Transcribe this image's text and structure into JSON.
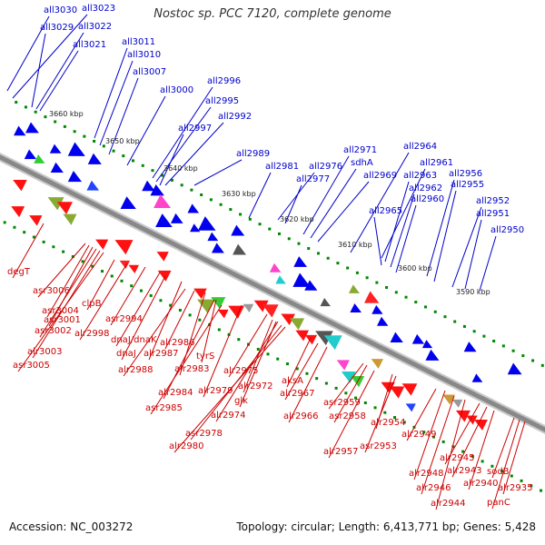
{
  "title": "Nostoc sp. PCC 7120, complete genome",
  "accession": "Accession: NC_003272",
  "summary": "Topology: circular; Length: 6,413,771 bp; Genes: 5,428",
  "colors": {
    "reverse_label": "#0000cc",
    "forward_label": "#cc0000",
    "backbone": "#888888",
    "tick": "#008800"
  },
  "scale_labels": [
    "3660 kbp",
    "3650 kbp",
    "3640 kbp",
    "3630 kbp",
    "3620 kbp",
    "3610 kbp",
    "3600 kbp",
    "3590 kbp"
  ],
  "reverse_strand_genes": [
    "all3030",
    "all3023",
    "all3029",
    "all3022",
    "all3021",
    "all3011",
    "all3010",
    "all3007",
    "all3000",
    "all2996",
    "all2995",
    "all2992",
    "all2997",
    "all2989",
    "all2981",
    "all2976",
    "all2977",
    "all2971",
    "sdhA",
    "all2969",
    "all2964",
    "all2961",
    "all2963",
    "all2962",
    "all2960",
    "all2956",
    "all2955",
    "all2965",
    "all2952",
    "all2951",
    "all2950"
  ],
  "forward_strand_genes": [
    "degT",
    "asr3006",
    "asr3004",
    "asr3001",
    "asr3002",
    "alr3003",
    "asr3005",
    "clpB",
    "alr2998",
    "asr2994",
    "dnaJ/dnaK",
    "dnaJ",
    "alr2987",
    "alr2986",
    "alr2988",
    "alr2983",
    "tyrS",
    "alr2984",
    "asr2985",
    "alr2979",
    "alr2975",
    "alr2972",
    "glk",
    "alr2974",
    "asr2978",
    "alr2980",
    "aksA",
    "alr2967",
    "alr2966",
    "asr2959",
    "asr2958",
    "alr2957",
    "alr2954",
    "asr2953",
    "alr2949",
    "alr2948",
    "alr2946",
    "alr2944",
    "alr2945",
    "alr2943",
    "alr2940",
    "sodB",
    "alr2935",
    "panC"
  ]
}
